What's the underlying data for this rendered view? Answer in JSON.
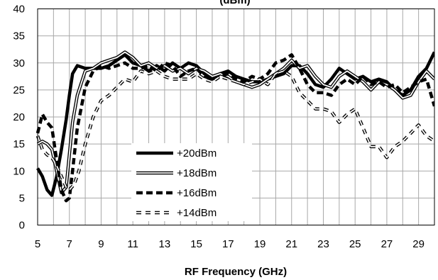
{
  "chart_data": {
    "type": "line",
    "title": "(dBm)",
    "xlabel": "RF Frequency (GHz)",
    "ylabel": "",
    "xlim": [
      5,
      30
    ],
    "ylim": [
      0,
      40
    ],
    "xticks": [
      5,
      7,
      9,
      11,
      13,
      15,
      17,
      19,
      21,
      23,
      25,
      27,
      29
    ],
    "yticks": [
      0,
      5,
      10,
      15,
      20,
      25,
      30,
      35,
      40
    ],
    "grid": true,
    "legend_position": "lower-left",
    "series": [
      {
        "name": "+20dBm",
        "style": "solid",
        "color": "#000000",
        "x": [
          5,
          5.3,
          5.6,
          5.9,
          6.2,
          6.5,
          6.8,
          7.0,
          7.2,
          7.5,
          8.0,
          8.5,
          9.0,
          9.5,
          10.0,
          10.5,
          11.0,
          11.5,
          12.0,
          12.5,
          13.0,
          13.5,
          14.0,
          14.5,
          15.0,
          15.5,
          16.0,
          16.5,
          17.0,
          17.5,
          18.0,
          18.5,
          19.0,
          19.5,
          20.0,
          20.5,
          21.0,
          21.5,
          22.0,
          22.5,
          23.0,
          23.5,
          24.0,
          24.5,
          25.0,
          25.5,
          26.0,
          26.5,
          27.0,
          27.5,
          28.0,
          28.5,
          29.0,
          29.5,
          30.0
        ],
        "y": [
          10.5,
          9.0,
          6.5,
          5.5,
          9.0,
          14.0,
          19.5,
          24.0,
          28.0,
          29.5,
          29.0,
          29.0,
          29.0,
          29.5,
          30.5,
          31.5,
          30.0,
          29.5,
          28.5,
          29.5,
          28.5,
          30.0,
          29.0,
          30.0,
          29.5,
          28.0,
          27.0,
          28.0,
          28.5,
          27.5,
          27.0,
          26.5,
          26.5,
          27.0,
          27.5,
          28.0,
          29.5,
          29.5,
          28.0,
          26.0,
          25.5,
          27.0,
          29.0,
          28.0,
          27.0,
          27.5,
          26.5,
          27.0,
          26.5,
          25.0,
          24.0,
          25.0,
          27.5,
          29.0,
          32.0
        ]
      },
      {
        "name": "+18dBm",
        "style": "double",
        "color": "#000000",
        "x": [
          5,
          5.3,
          5.6,
          5.9,
          6.2,
          6.5,
          6.8,
          7.0,
          7.2,
          7.5,
          8.0,
          8.5,
          9.0,
          9.5,
          10.0,
          10.5,
          11.0,
          11.5,
          12.0,
          12.5,
          13.0,
          13.5,
          14.0,
          14.5,
          15.0,
          15.5,
          16.0,
          16.5,
          17.0,
          17.5,
          18.0,
          18.5,
          19.0,
          19.5,
          20.0,
          20.5,
          21.0,
          21.5,
          22.0,
          22.5,
          23.0,
          23.5,
          24.0,
          24.5,
          25.0,
          25.5,
          26.0,
          26.5,
          27.0,
          27.5,
          28.0,
          28.5,
          29.0,
          29.5,
          30.0
        ],
        "y": [
          15.0,
          15.5,
          15.0,
          14.0,
          10.0,
          6.0,
          7.0,
          13.0,
          19.0,
          24.0,
          28.5,
          29.0,
          30.0,
          30.5,
          31.0,
          32.0,
          31.0,
          29.5,
          30.0,
          29.0,
          29.5,
          28.5,
          29.0,
          28.0,
          29.0,
          28.5,
          27.5,
          28.0,
          27.5,
          26.5,
          26.0,
          25.5,
          26.0,
          27.0,
          28.0,
          29.0,
          30.5,
          29.0,
          29.5,
          27.5,
          26.0,
          25.5,
          27.5,
          28.5,
          27.5,
          26.5,
          25.0,
          26.5,
          26.0,
          25.0,
          23.5,
          24.0,
          26.5,
          28.5,
          27.0
        ]
      },
      {
        "name": "+16dBm",
        "style": "dashed",
        "color": "#000000",
        "x": [
          5,
          5.3,
          5.6,
          5.9,
          6.2,
          6.5,
          6.8,
          7.0,
          7.2,
          7.5,
          8.0,
          8.5,
          9.0,
          9.5,
          10.0,
          10.5,
          11.0,
          11.5,
          12.0,
          12.5,
          13.0,
          13.5,
          14.0,
          14.5,
          15.0,
          15.5,
          16.0,
          16.5,
          17.0,
          17.5,
          18.0,
          18.5,
          19.0,
          19.5,
          20.0,
          20.5,
          21.0,
          21.5,
          22.0,
          22.5,
          23.0,
          23.5,
          24.0,
          24.5,
          25.0,
          25.5,
          26.0,
          26.5,
          27.0,
          27.5,
          28.0,
          28.5,
          29.0,
          29.5,
          30.0
        ],
        "y": [
          17.0,
          20.5,
          19.0,
          18.0,
          12.0,
          6.5,
          4.5,
          5.0,
          10.0,
          18.0,
          25.5,
          28.5,
          29.5,
          29.0,
          29.5,
          30.0,
          29.0,
          29.0,
          29.5,
          28.5,
          30.0,
          29.5,
          27.5,
          28.5,
          29.0,
          27.5,
          27.0,
          27.5,
          28.0,
          27.0,
          26.5,
          27.5,
          27.0,
          28.0,
          30.0,
          30.5,
          31.5,
          29.0,
          26.0,
          24.5,
          24.5,
          24.0,
          26.0,
          27.0,
          26.0,
          27.5,
          26.0,
          26.5,
          25.5,
          26.0,
          24.5,
          25.5,
          26.5,
          27.0,
          22.0
        ]
      },
      {
        "name": "+14dBm",
        "style": "dashed-double",
        "color": "#000000",
        "x": [
          5,
          5.3,
          5.6,
          5.9,
          6.2,
          6.5,
          6.8,
          7.0,
          7.3,
          7.6,
          8.0,
          8.5,
          9.0,
          9.5,
          10.0,
          10.5,
          11.0,
          11.5,
          12.0,
          12.5,
          13.0,
          13.5,
          14.0,
          14.5,
          15.0,
          15.5,
          16.0,
          16.5,
          17.0,
          17.5,
          18.0,
          18.5,
          19.0,
          19.5,
          20.0,
          20.5,
          21.0,
          21.5,
          22.0,
          22.5,
          23.0,
          23.5,
          24.0,
          24.5,
          25.0,
          25.5,
          26.0,
          26.5,
          27.0,
          27.5,
          28.0,
          28.5,
          29.0,
          29.5,
          30.0
        ],
        "y": [
          16.5,
          14.0,
          13.0,
          12.5,
          11.0,
          9.0,
          7.0,
          6.5,
          7.5,
          10.0,
          15.0,
          20.0,
          23.0,
          24.0,
          25.5,
          27.0,
          26.5,
          28.5,
          28.0,
          28.5,
          27.5,
          27.0,
          27.0,
          27.0,
          28.0,
          27.0,
          26.5,
          27.5,
          27.0,
          26.5,
          26.0,
          26.5,
          27.0,
          26.0,
          28.0,
          28.5,
          27.5,
          24.5,
          23.0,
          21.5,
          21.5,
          21.0,
          19.0,
          20.5,
          21.5,
          18.0,
          14.5,
          14.5,
          12.5,
          14.5,
          15.5,
          17.0,
          18.5,
          16.5,
          15.5
        ]
      }
    ]
  }
}
